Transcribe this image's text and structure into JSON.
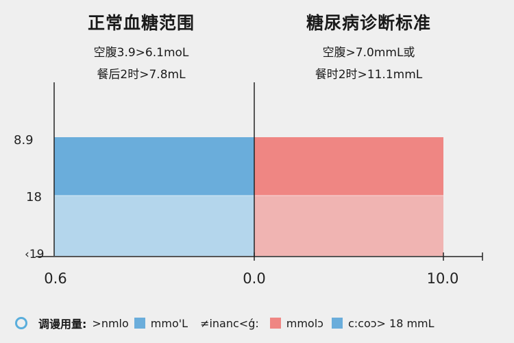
{
  "left_panel": {
    "title": "正常血糖范围",
    "line1": "空腹3.9>6.1moL",
    "line2": "餐后2时>7.8mL"
  },
  "right_panel": {
    "title": "糖尿病诊断标准",
    "line1": "空腹>7.0mmL或",
    "line2": "餐时2时>11.1mmL"
  },
  "colors": {
    "normal_dark": "#6aaddb",
    "normal_light": "#b4d6ec",
    "diabetes_dark": "#ef8683",
    "diabetes_light": "#f0b4b2",
    "axis": "#222222"
  },
  "legend": {
    "prefix": "调谩用量:",
    "item1": ">nmlo",
    "item2": "mmo'L",
    "item3": "≠inanc<ǵ:",
    "item4": "mmolↄ",
    "item5": "c:coↄ> 18 mmL"
  },
  "chart_data": {
    "type": "bar",
    "x_ticks": [
      "0.6",
      "0.0",
      "10.0"
    ],
    "y_ticks": [
      "8.9",
      "18",
      "‹19"
    ],
    "grid": false,
    "legend_position": "bottom",
    "series": [
      {
        "segments": [
          {
            "from": "18",
            "to": "8.9",
            "color": "#6aaddb"
          },
          {
            "from": "‹19",
            "to": "18",
            "color": "#b4d6ec"
          }
        ],
        "x_range": [
          "0.6",
          "0.0"
        ]
      },
      {
        "segments": [
          {
            "from": "18",
            "to": "8.9",
            "color": "#ef8683"
          },
          {
            "from": "‹19",
            "to": "18",
            "color": "#f0b4b2"
          }
        ],
        "x_range": [
          "0.0",
          "10.0"
        ]
      }
    ]
  }
}
